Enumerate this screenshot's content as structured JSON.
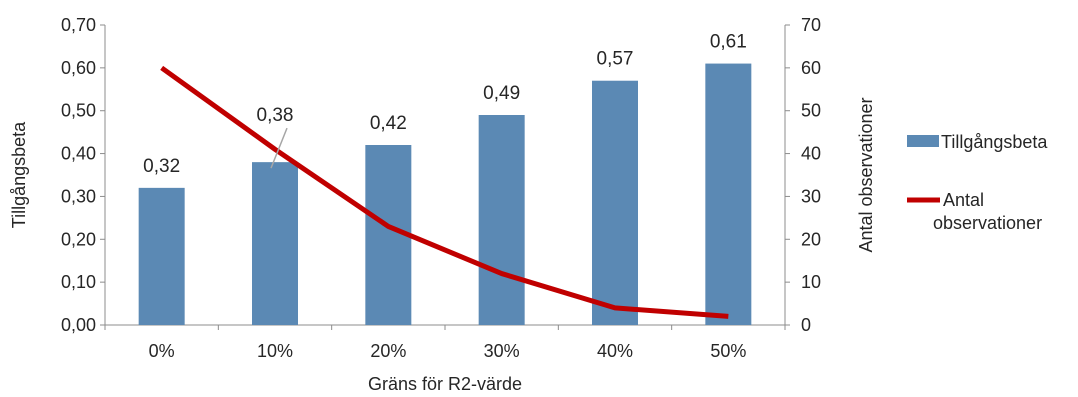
{
  "chart_data": {
    "type": "bar",
    "categories": [
      "0%",
      "10%",
      "20%",
      "30%",
      "40%",
      "50%"
    ],
    "xlabel": "Gräns för R2-värde",
    "ylabel": "Tillgångsbeta",
    "y2label": "Antal observationer",
    "ylim": [
      0,
      0.7
    ],
    "y2lim": [
      0,
      70
    ],
    "yticks": [
      "0,00",
      "0,10",
      "0,20",
      "0,30",
      "0,40",
      "0,50",
      "0,60",
      "0,70"
    ],
    "y2ticks": [
      "0",
      "10",
      "20",
      "30",
      "40",
      "50",
      "60",
      "70"
    ],
    "grid": false,
    "legend_position": "right",
    "series": [
      {
        "name": "Tillgångsbeta",
        "type": "bar",
        "axis": "left",
        "color": "#5b89b4",
        "values": [
          0.32,
          0.38,
          0.42,
          0.49,
          0.57,
          0.61
        ],
        "labels": [
          "0,32",
          "0,38",
          "0,42",
          "0,49",
          "0,57",
          "0,61"
        ]
      },
      {
        "name_lines": [
          "Antal",
          "observationer"
        ],
        "type": "line",
        "axis": "right",
        "color": "#c00000",
        "values": [
          60,
          41,
          23,
          12,
          4,
          2
        ]
      }
    ]
  }
}
